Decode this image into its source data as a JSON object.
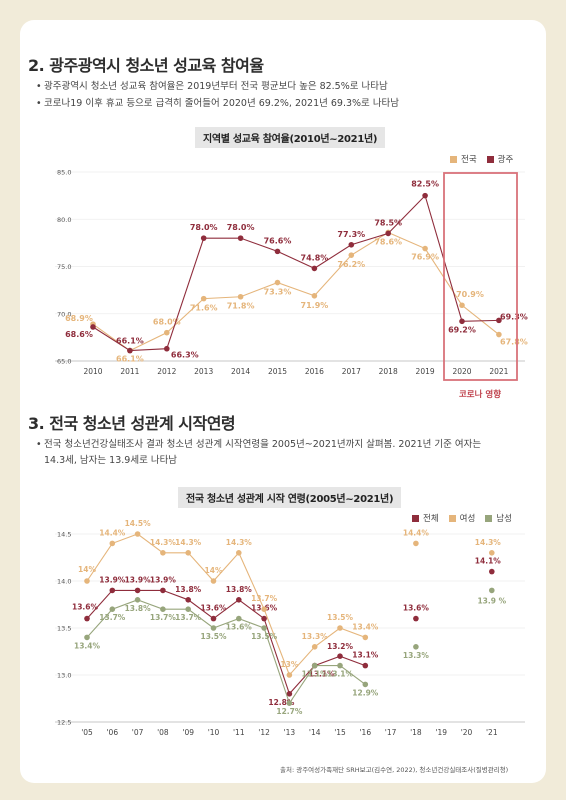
{
  "section1": {
    "title": "2. 광주광역시 청소년 성교육 참여율",
    "bullets": [
      "광주광역시 청소년 성교육 참여율은 2019년부터 전국 평균보다 높은 82.5%로 나타남",
      "코로나19 이후 휴교 등으로 급격히 줄어들어 2020년 69.2%, 2021년 69.3%로 나타남"
    ]
  },
  "section2": {
    "title": "3. 전국 청소년 성관계 시작연령",
    "bullets": [
      "전국 청소년건강실태조사 결과 청소년 성관계 시작연령을 2005년~2021년까지 살펴봄. 2021년 기준 여자는 14.3세, 남자는 13.9세로 나타남"
    ]
  },
  "colors": {
    "dark": "#8f2d3c",
    "light": "#e5b57b",
    "green": "#97a57c",
    "box": "#d9727a"
  },
  "chart_data": [
    {
      "type": "line",
      "title": "지역별 성교육 참여율(2010년~2021년)",
      "x": [
        "2010",
        "2011",
        "2012",
        "2013",
        "2014",
        "2015",
        "2016",
        "2017",
        "2018",
        "2019",
        "2020",
        "2021"
      ],
      "ylim": [
        65,
        85
      ],
      "yticks": [
        "65.0",
        "70.0",
        "75.0",
        "80.0",
        "85.0"
      ],
      "series": [
        {
          "name": "전국",
          "color": "#e5b57b",
          "values": [
            68.9,
            66.1,
            68.0,
            71.6,
            71.8,
            73.3,
            71.9,
            76.2,
            78.6,
            76.9,
            70.9,
            67.8
          ],
          "labels": [
            "68.9%",
            "66.1%",
            "68.0%",
            "71.6%",
            "71.8%",
            "73.3%",
            "71.9%",
            "76.2%",
            "78.6%",
            "76.9%",
            "70.9%",
            "67.8%"
          ]
        },
        {
          "name": "광주",
          "color": "#8f2d3c",
          "values": [
            68.6,
            66.1,
            66.3,
            78.0,
            78.0,
            76.6,
            74.8,
            77.3,
            78.5,
            82.5,
            69.2,
            69.3
          ],
          "labels": [
            "68.6%",
            "66.1%",
            "66.3%",
            "78.0%",
            "78.0%",
            "76.6%",
            "74.8%",
            "77.3%",
            "78.5%",
            "82.5%",
            "69.2%",
            "69.3%"
          ]
        }
      ],
      "annotation": "코로나 영향"
    },
    {
      "type": "line",
      "title": "전국 청소년 성관계 시작 연령(2005년~2021년)",
      "x": [
        "'05",
        "'06",
        "'07",
        "'08",
        "'09",
        "'10",
        "'11",
        "'12",
        "'13",
        "'14",
        "'15",
        "'16",
        "'17",
        "'18",
        "'19",
        "'20",
        "'21"
      ],
      "ylim": [
        12.5,
        14.5
      ],
      "yticks": [
        "12.5",
        "13.0",
        "13.5",
        "14.0",
        "14.5"
      ],
      "series": [
        {
          "name": "전체",
          "color": "#8f2d3c",
          "values": [
            13.6,
            13.9,
            13.9,
            13.9,
            13.8,
            13.6,
            13.8,
            13.6,
            12.8,
            13.1,
            13.2,
            13.1,
            null,
            13.6,
            null,
            null,
            14.1
          ],
          "labels": [
            "13.6%",
            "13.9%",
            "13.9%",
            "13.9%",
            "13.8%",
            "13.6%",
            "13.8%",
            "13.6%",
            "12.8%",
            "13.1%",
            "13.2%",
            "13.1%",
            "",
            "13.6%",
            "",
            "",
            "14.1%"
          ]
        },
        {
          "name": "여성",
          "color": "#e5b57b",
          "values": [
            14.0,
            14.4,
            14.5,
            14.3,
            14.3,
            14.0,
            14.3,
            13.7,
            13.0,
            13.3,
            13.5,
            13.4,
            null,
            14.4,
            null,
            null,
            14.3
          ],
          "labels": [
            "14%",
            "14.4%",
            "14.5%",
            "14.3%",
            "14.3%",
            "14%",
            "14.3%",
            "13.7%",
            "13%",
            "13.3%",
            "13.5%",
            "13.4%",
            "",
            "14.4%",
            "",
            "",
            "14.3%"
          ]
        },
        {
          "name": "남성",
          "color": "#97a57c",
          "values": [
            13.4,
            13.7,
            13.8,
            13.7,
            13.7,
            13.5,
            13.6,
            13.5,
            12.7,
            13.1,
            13.1,
            12.9,
            null,
            13.3,
            null,
            null,
            13.9
          ],
          "labels": [
            "13.4%",
            "13.7%",
            "13.8%",
            "13.7%",
            "13.7%",
            "13.5%",
            "13.6%",
            "13.5%",
            "12.7%",
            "13.1%",
            "13.1%",
            "12.9%",
            "",
            "13.3%",
            "",
            "",
            "13.9 %"
          ]
        }
      ]
    }
  ],
  "source": "출처: 광주여성가족재단 SRH보고(김수연, 2022), 청소년건강실태조사(질병관리청)"
}
